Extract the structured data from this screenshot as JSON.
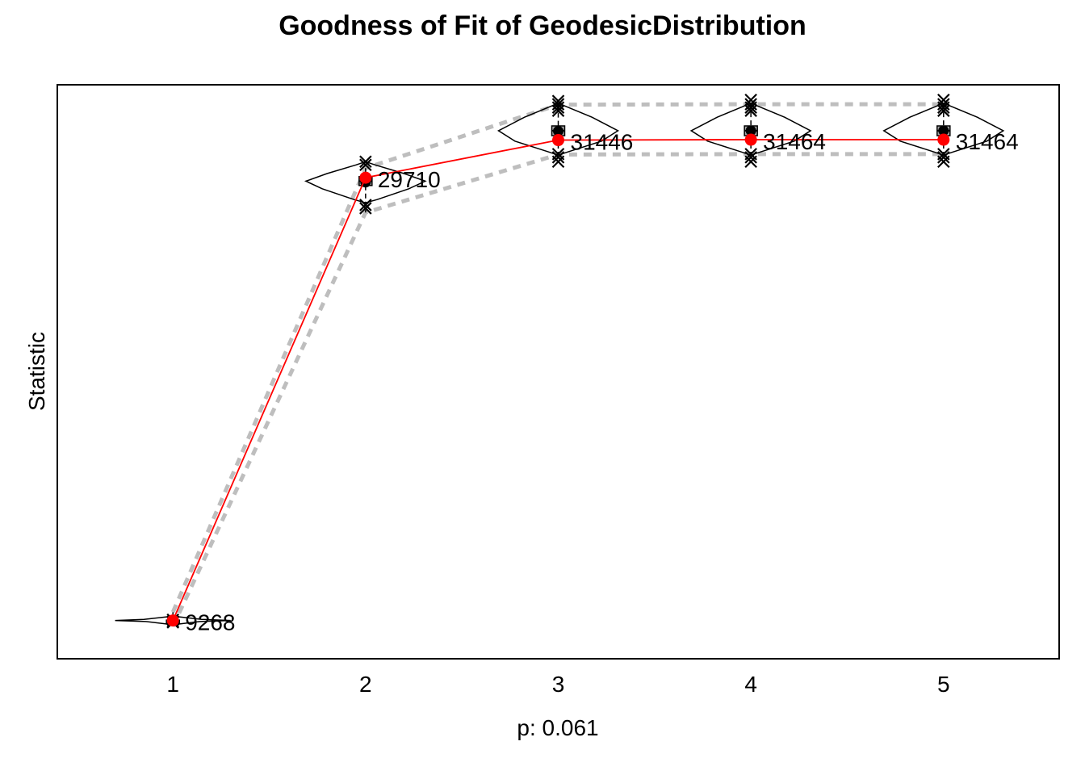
{
  "chart_data": {
    "type": "line",
    "title": "Goodness of Fit of GeodesicDistribution",
    "xlabel": "p: 0.061",
    "ylabel": "Statistic",
    "x": [
      1,
      2,
      3,
      4,
      5
    ],
    "xlim": [
      0.4,
      5.6
    ],
    "ylim": [
      7500,
      34000
    ],
    "y_tick_labels_shown": false,
    "observed": {
      "values": [
        9268,
        29710,
        31446,
        31464,
        31464
      ],
      "labels": [
        "9268",
        "29710",
        "31446",
        "31464",
        "31464"
      ],
      "color": "#ff0000"
    },
    "simulated_mean": [
      9268,
      29500,
      31860,
      31880,
      31880
    ],
    "simulated_box": [
      {
        "q1": 9250,
        "median": 9268,
        "q3": 9285
      },
      {
        "q1": 29350,
        "median": 29550,
        "q3": 29760
      },
      {
        "q1": 31650,
        "median": 31880,
        "q3": 32100
      },
      {
        "q1": 31650,
        "median": 31880,
        "q3": 32100
      },
      {
        "q1": 31650,
        "median": 31880,
        "q3": 32100
      }
    ],
    "simulated_band": {
      "lower": [
        9000,
        28100,
        30780,
        30800,
        30800
      ],
      "upper": [
        9650,
        30150,
        33080,
        33100,
        33100
      ],
      "color": "#bebebe",
      "style": "dashed"
    },
    "violins": [
      {
        "y": [
          9220,
          9268,
          9320
        ],
        "width": [
          0.28,
          0.6,
          0.3
        ]
      },
      {
        "y": [
          28700,
          29200,
          29550,
          29900,
          30300
        ],
        "width": [
          0.12,
          0.45,
          0.62,
          0.4,
          0.1
        ]
      },
      {
        "y": [
          30900,
          31400,
          31880,
          32500,
          33000
        ],
        "width": [
          0.1,
          0.45,
          0.62,
          0.35,
          0.08
        ]
      },
      {
        "y": [
          30900,
          31400,
          31880,
          32500,
          33000
        ],
        "width": [
          0.1,
          0.45,
          0.62,
          0.35,
          0.08
        ]
      },
      {
        "y": [
          30900,
          31400,
          31880,
          32500,
          33000
        ],
        "width": [
          0.1,
          0.45,
          0.62,
          0.35,
          0.08
        ]
      }
    ],
    "outliers": [
      [
        9180,
        9220,
        9300
      ],
      [
        28300,
        28450,
        30300,
        30450
      ],
      [
        30450,
        30650,
        30800,
        32800,
        32950,
        33100,
        33250
      ],
      [
        30450,
        30650,
        30800,
        32800,
        32950,
        33100,
        33300
      ],
      [
        30450,
        30650,
        30800,
        32800,
        32950,
        33100,
        33300
      ]
    ]
  }
}
